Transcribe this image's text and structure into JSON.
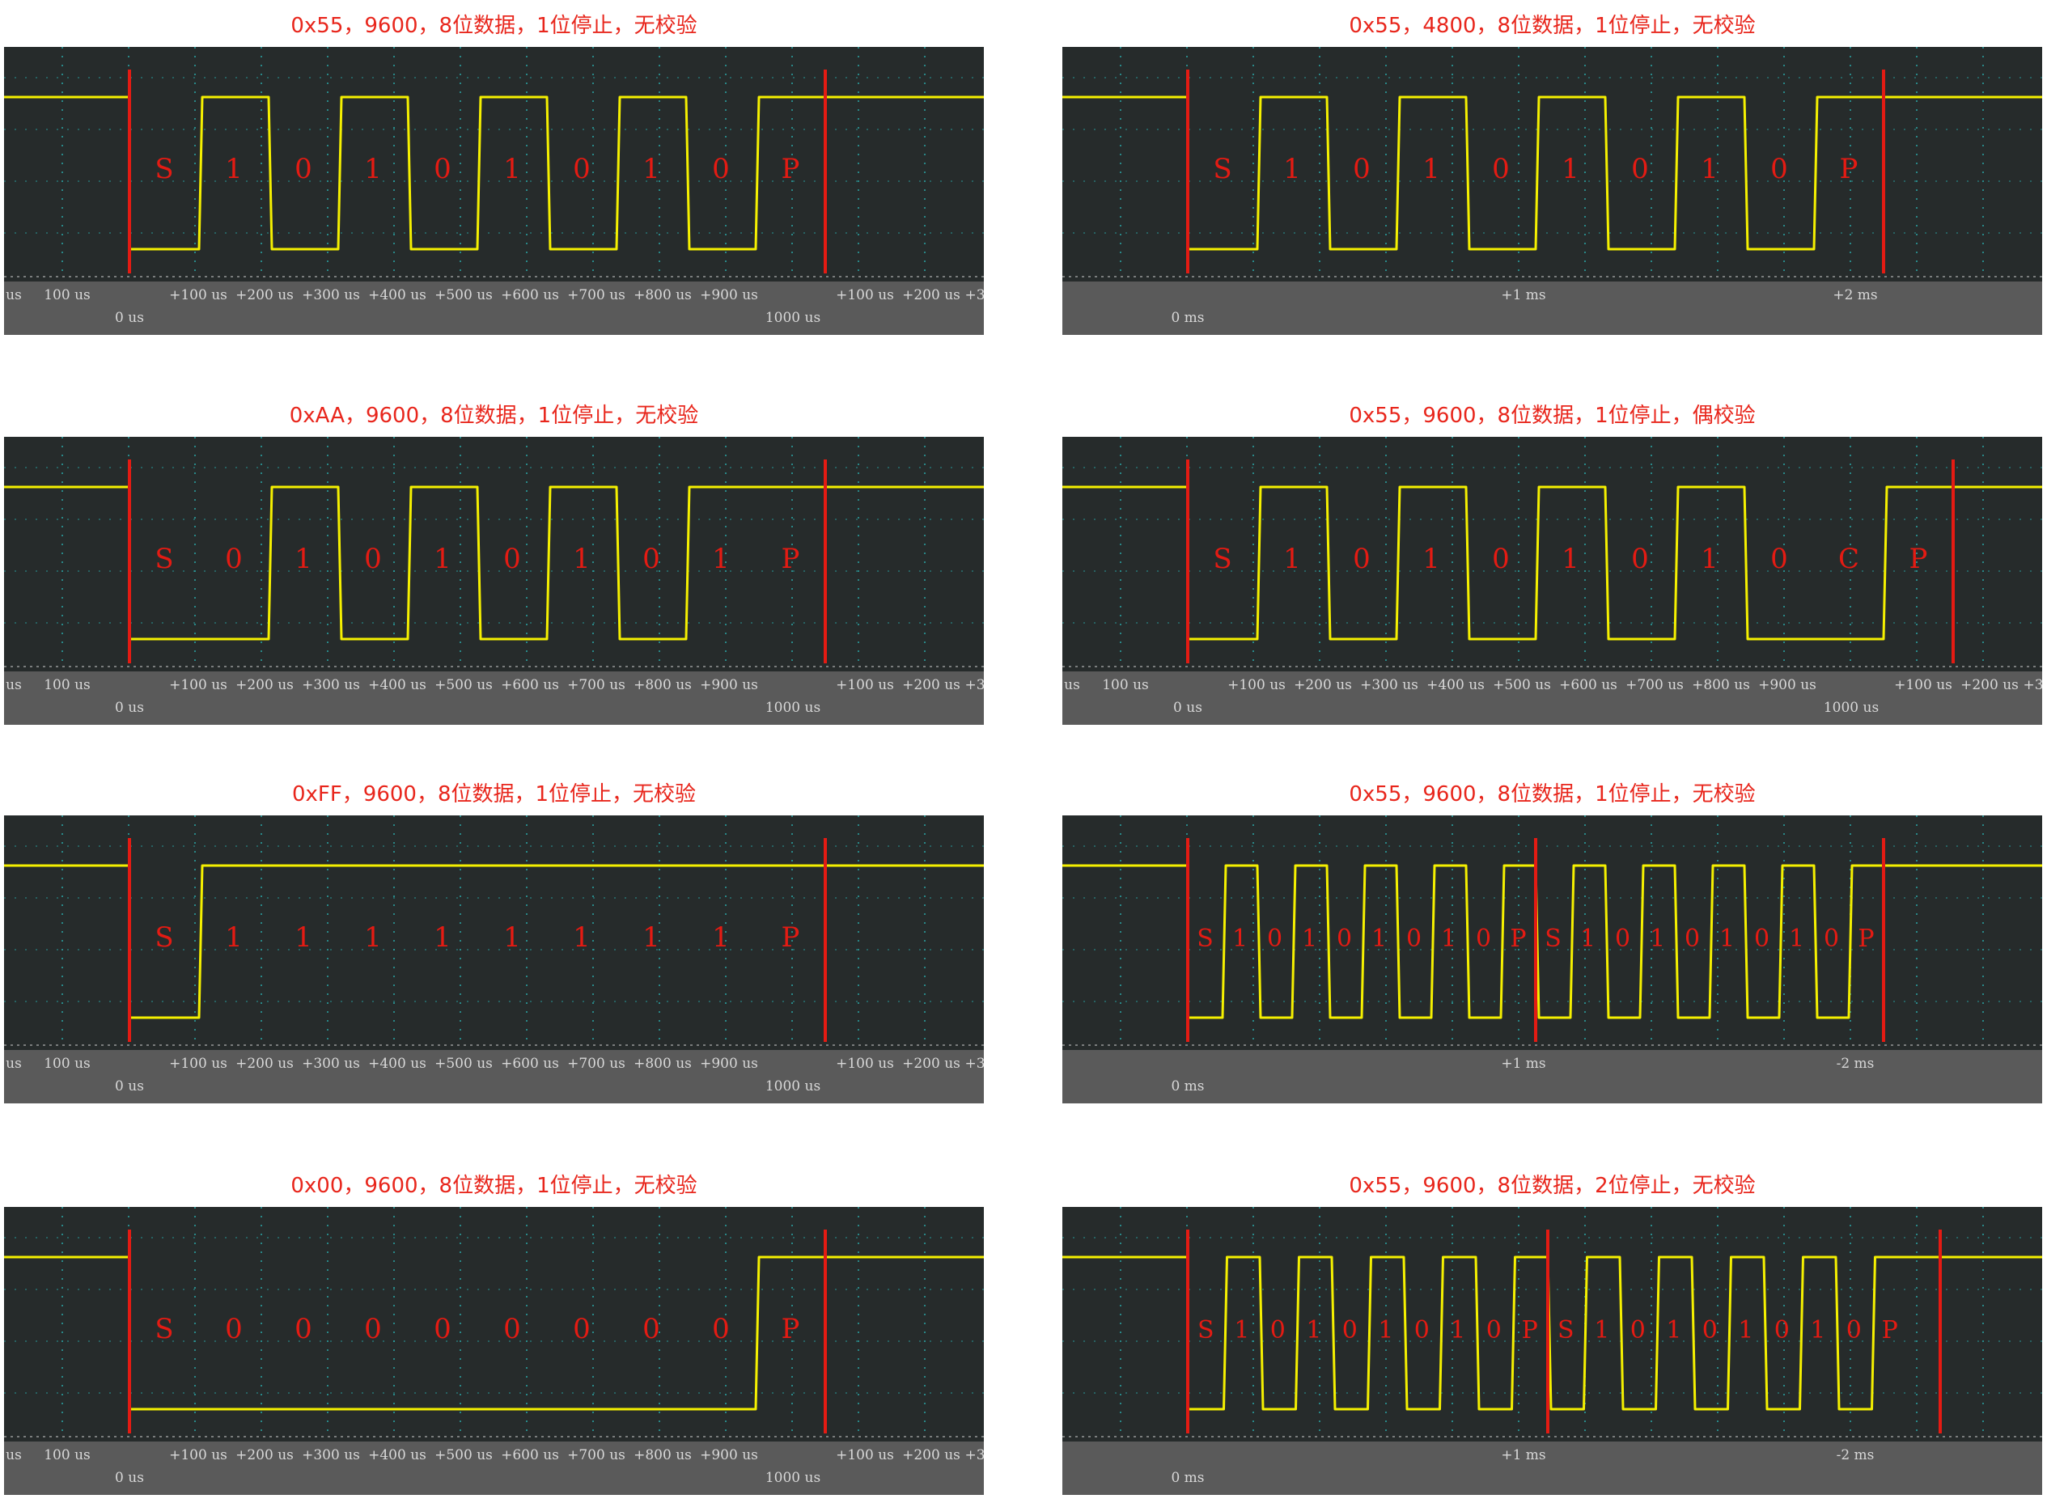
{
  "page_background": "#ffffff",
  "colors": {
    "title": "#e8261c",
    "scope_background": "#262b2b",
    "grid": "#2aa6a6",
    "trace": "#f5f000",
    "marker": "#e41b13",
    "bit_label": "#e41b13",
    "axis_band": "#5a5a5a",
    "tick_text": "#d8d8d8"
  },
  "panels": [
    {
      "title": "0x55，9600，8位数据，1位停止，无校验",
      "axis": "us",
      "bits": [
        "S",
        "1",
        "0",
        "1",
        "0",
        "1",
        "0",
        "1",
        "0",
        "P"
      ],
      "levels": [
        0,
        1,
        0,
        1,
        0,
        1,
        0,
        1,
        0,
        1
      ],
      "scale_labels": [
        "us",
        "100 us",
        "+100 us",
        "+200 us",
        "+300 us",
        "+400 us",
        "+500 us",
        "+600 us",
        "+700 us",
        "+800 us",
        "+900 us",
        "+100 us",
        "+200 us",
        "+3"
      ],
      "origin_labels": [
        "0 us",
        "1000 us"
      ]
    },
    {
      "title": "0x55，4800，8位数据，1位停止，无校验",
      "axis": "ms",
      "bits": [
        "S",
        "1",
        "0",
        "1",
        "0",
        "1",
        "0",
        "1",
        "0",
        "P"
      ],
      "levels": [
        0,
        1,
        0,
        1,
        0,
        1,
        0,
        1,
        0,
        1
      ],
      "scale_labels": [
        "+1 ms",
        "+2 ms"
      ],
      "origin_labels": [
        "0 ms"
      ]
    },
    {
      "title": "0xAA，9600，8位数据，1位停止，无校验",
      "axis": "us",
      "bits": [
        "S",
        "0",
        "1",
        "0",
        "1",
        "0",
        "1",
        "0",
        "1",
        "P"
      ],
      "levels": [
        0,
        0,
        1,
        0,
        1,
        0,
        1,
        0,
        1,
        1
      ],
      "scale_labels": [
        "us",
        "100 us",
        "+100 us",
        "+200 us",
        "+300 us",
        "+400 us",
        "+500 us",
        "+600 us",
        "+700 us",
        "+800 us",
        "+900 us",
        "+100 us",
        "+200 us",
        "+3"
      ],
      "origin_labels": [
        "0 us",
        "1000 us"
      ]
    },
    {
      "title": "0x55，9600，8位数据，1位停止，偶校验",
      "axis": "us",
      "bits": [
        "S",
        "1",
        "0",
        "1",
        "0",
        "1",
        "0",
        "1",
        "0",
        "C",
        "P"
      ],
      "levels": [
        0,
        1,
        0,
        1,
        0,
        1,
        0,
        1,
        0,
        0,
        1
      ],
      "scale_labels": [
        "us",
        "100 us",
        "+100 us",
        "+200 us",
        "+300 us",
        "+400 us",
        "+500 us",
        "+600 us",
        "+700 us",
        "+800 us",
        "+900 us",
        "+100 us",
        "+200 us",
        "+3"
      ],
      "origin_labels": [
        "0 us",
        "1000 us"
      ]
    },
    {
      "title": "0xFF，9600，8位数据，1位停止，无校验",
      "axis": "us",
      "bits": [
        "S",
        "1",
        "1",
        "1",
        "1",
        "1",
        "1",
        "1",
        "1",
        "P"
      ],
      "levels": [
        0,
        1,
        1,
        1,
        1,
        1,
        1,
        1,
        1,
        1
      ],
      "scale_labels": [
        "us",
        "100 us",
        "+100 us",
        "+200 us",
        "+300 us",
        "+400 us",
        "+500 us",
        "+600 us",
        "+700 us",
        "+800 us",
        "+900 us",
        "+100 us",
        "+200 us",
        "+3"
      ],
      "origin_labels": [
        "0 us",
        "1000 us"
      ]
    },
    {
      "title": "0x55，9600，8位数据，1位停止，无校验",
      "axis": "ms",
      "bits": [
        "S",
        "1",
        "0",
        "1",
        "0",
        "1",
        "0",
        "1",
        "0",
        "P",
        "S",
        "1",
        "0",
        "1",
        "0",
        "1",
        "0",
        "1",
        "0",
        "P"
      ],
      "levels": [
        0,
        1,
        0,
        1,
        0,
        1,
        0,
        1,
        0,
        1,
        0,
        1,
        0,
        1,
        0,
        1,
        0,
        1,
        0,
        1
      ],
      "scale_labels": [
        "+1 ms",
        "-2 ms"
      ],
      "origin_labels": [
        "0 ms"
      ]
    },
    {
      "title": "0x00，9600，8位数据，1位停止，无校验",
      "axis": "us",
      "bits": [
        "S",
        "0",
        "0",
        "0",
        "0",
        "0",
        "0",
        "0",
        "0",
        "P"
      ],
      "levels": [
        0,
        0,
        0,
        0,
        0,
        0,
        0,
        0,
        0,
        1
      ],
      "scale_labels": [
        "us",
        "100 us",
        "+100 us",
        "+200 us",
        "+300 us",
        "+400 us",
        "+500 us",
        "+600 us",
        "+700 us",
        "+800 us",
        "+900 us",
        "+100 us",
        "+200 us",
        "+3"
      ],
      "origin_labels": [
        "0 us",
        "1000 us"
      ]
    },
    {
      "title": "0x55，9600，8位数据，2位停止，无校验",
      "axis": "ms",
      "bits": [
        "S",
        "1",
        "0",
        "1",
        "0",
        "1",
        "0",
        "1",
        "0",
        "P",
        "S",
        "1",
        "0",
        "1",
        "0",
        "1",
        "0",
        "1",
        "0",
        "P"
      ],
      "levels": [
        0,
        1,
        0,
        1,
        0,
        1,
        0,
        1,
        0,
        1,
        0,
        1,
        0,
        1,
        0,
        1,
        0,
        1,
        0,
        1
      ],
      "scale_labels": [
        "+1 ms",
        "-2 ms"
      ],
      "origin_labels": [
        "0 ms"
      ]
    }
  ]
}
